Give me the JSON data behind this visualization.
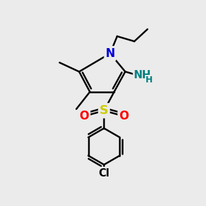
{
  "background_color": "#ebebeb",
  "bond_color": "#000000",
  "bond_width": 1.8,
  "atoms": {
    "N": {
      "color": "#0000dd",
      "fontsize": 12,
      "fontweight": "bold"
    },
    "S": {
      "color": "#cccc00",
      "fontsize": 13,
      "fontweight": "bold"
    },
    "O": {
      "color": "#ff0000",
      "fontsize": 12,
      "fontweight": "bold"
    },
    "Cl": {
      "color": "#000000",
      "fontsize": 11,
      "fontweight": "bold"
    },
    "NH2": {
      "color": "#008080",
      "fontsize": 11,
      "fontweight": "bold"
    }
  },
  "figsize": [
    3.0,
    3.0
  ],
  "dpi": 100,
  "xlim": [
    0,
    10
  ],
  "ylim": [
    0,
    10
  ]
}
